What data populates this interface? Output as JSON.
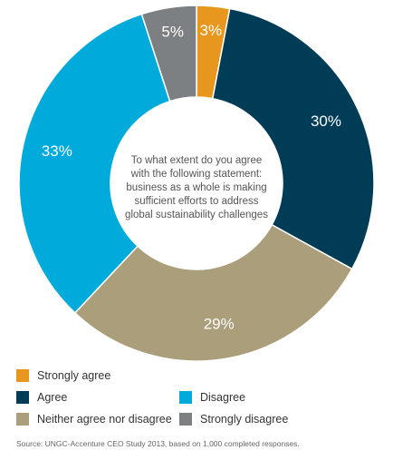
{
  "chart_data": {
    "type": "pie",
    "title": "To what extent do you agree with the following statement: business as a whole is making sufficient efforts to address global sustainability challenges",
    "categories": [
      "Strongly agree",
      "Agree",
      "Neither agree nor disagree",
      "Disagree",
      "Strongly disagree"
    ],
    "values": [
      3,
      30,
      29,
      33,
      5
    ],
    "value_labels": [
      "3%",
      "30%",
      "29%",
      "33%",
      "5%"
    ],
    "colors": [
      "#e8971e",
      "#003c55",
      "#aa9e7b",
      "#00aadb",
      "#7d8083"
    ],
    "donut": true,
    "legend_placement": "bottom"
  },
  "legend": {
    "items": [
      {
        "label": "Strongly agree",
        "color": "#e8971e"
      },
      {
        "label": "Agree",
        "color": "#003c55"
      },
      {
        "label": "Disagree",
        "color": "#00aadb"
      },
      {
        "label": "Neither agree nor disagree",
        "color": "#aa9e7b"
      },
      {
        "label": "Strongly disagree",
        "color": "#7d8083"
      }
    ]
  },
  "source": "Source: UNGC-Accenture CEO Study 2013, based on 1,000 completed responses."
}
